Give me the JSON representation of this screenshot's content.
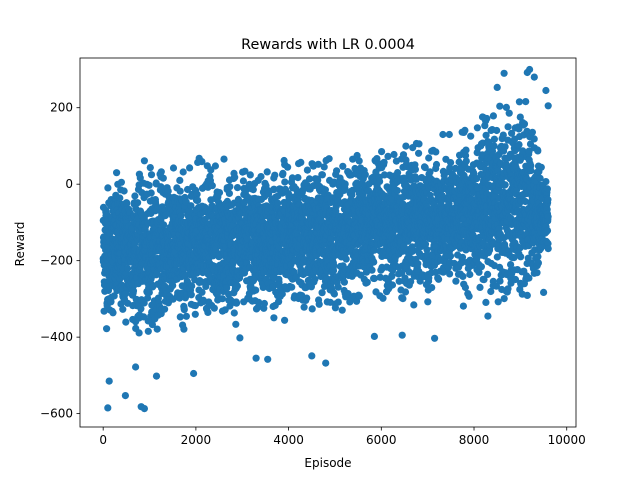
{
  "chart_data": {
    "type": "scatter",
    "title": "Rewards with LR 0.0004",
    "xlabel": "Episode",
    "ylabel": "Reward",
    "xlim": [
      -500,
      10200
    ],
    "ylim": [
      -635,
      330
    ],
    "xticks": [
      0,
      2000,
      4000,
      6000,
      8000,
      10000
    ],
    "yticks": [
      -600,
      -400,
      -200,
      0,
      200
    ],
    "grid": false,
    "legend": "none",
    "marker_color": "#1f77b4",
    "episodes_total": 9600,
    "series": [
      {
        "trend": [
          {
            "x": 0,
            "y_mean": -170,
            "y_low": -330,
            "y_high": 0
          },
          {
            "x": 1000,
            "y_mean": -175,
            "y_low": -330,
            "y_high": 30
          },
          {
            "x": 2000,
            "y_mean": -165,
            "y_low": -320,
            "y_high": 30
          },
          {
            "x": 3000,
            "y_mean": -155,
            "y_low": -310,
            "y_high": 25
          },
          {
            "x": 4000,
            "y_mean": -140,
            "y_low": -300,
            "y_high": 25
          },
          {
            "x": 5000,
            "y_mean": -125,
            "y_low": -290,
            "y_high": 35
          },
          {
            "x": 6000,
            "y_mean": -110,
            "y_low": -280,
            "y_high": 45
          },
          {
            "x": 7000,
            "y_mean": -95,
            "y_low": -270,
            "y_high": 80
          },
          {
            "x": 8000,
            "y_mean": -80,
            "y_low": -260,
            "y_high": 120
          },
          {
            "x": 8500,
            "y_mean": -55,
            "y_low": -250,
            "y_high": 170
          },
          {
            "x": 9000,
            "y_mean": -30,
            "y_low": -250,
            "y_high": 260
          },
          {
            "x": 9300,
            "y_mean": -70,
            "y_low": -220,
            "y_high": 110
          },
          {
            "x": 9600,
            "y_mean": -90,
            "y_low": -160,
            "y_high": -10
          }
        ],
        "outliers": [
          {
            "x": 100,
            "y": -585
          },
          {
            "x": 820,
            "y": -582
          },
          {
            "x": 890,
            "y": -587
          },
          {
            "x": 480,
            "y": -553
          },
          {
            "x": 130,
            "y": -515
          },
          {
            "x": 1950,
            "y": -495
          },
          {
            "x": 1150,
            "y": -502
          },
          {
            "x": 700,
            "y": -478
          },
          {
            "x": 4800,
            "y": -468
          },
          {
            "x": 4500,
            "y": -449
          },
          {
            "x": 3300,
            "y": -455
          },
          {
            "x": 3550,
            "y": -458
          },
          {
            "x": 7150,
            "y": -403
          },
          {
            "x": 5850,
            "y": -398
          },
          {
            "x": 6450,
            "y": -395
          },
          {
            "x": 2950,
            "y": -402
          },
          {
            "x": 8300,
            "y": -345
          },
          {
            "x": 9500,
            "y": -283
          },
          {
            "x": 9200,
            "y": 300
          },
          {
            "x": 9150,
            "y": 292
          },
          {
            "x": 8650,
            "y": 290
          },
          {
            "x": 9300,
            "y": 280
          },
          {
            "x": 8500,
            "y": 253
          },
          {
            "x": 9550,
            "y": 245
          },
          {
            "x": 9600,
            "y": 205
          },
          {
            "x": 8200,
            "y": 175
          }
        ]
      }
    ]
  }
}
